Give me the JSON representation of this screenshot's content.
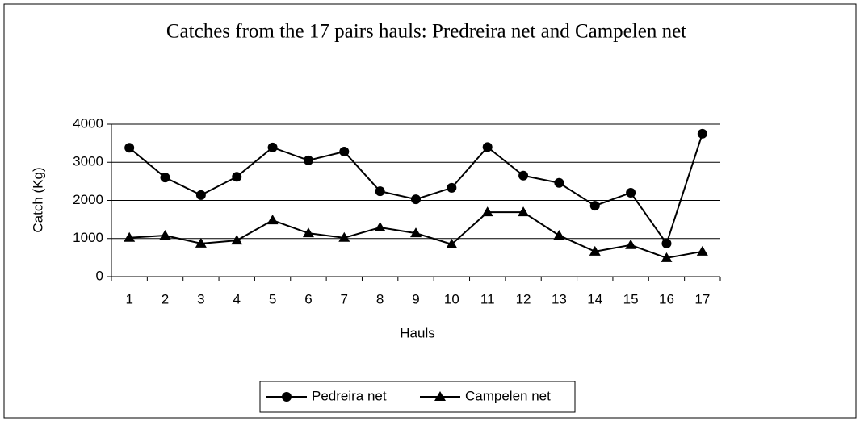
{
  "chart_data": {
    "type": "line",
    "title": "Catches from the 17 pairs hauls: Predreira net and Campelen net",
    "x_label": "Hauls",
    "y_label": "Catch (Kg)",
    "categories": [
      "1",
      "2",
      "3",
      "4",
      "5",
      "6",
      "7",
      "8",
      "9",
      "10",
      "11",
      "12",
      "13",
      "14",
      "15",
      "16",
      "17"
    ],
    "series": [
      {
        "name": "Pedreira net",
        "color": "#000000",
        "marker": "circle",
        "values": [
          3380,
          2600,
          2140,
          2620,
          3390,
          3050,
          3280,
          2240,
          2030,
          2330,
          3400,
          2650,
          2460,
          1860,
          2200,
          870,
          3750
        ]
      },
      {
        "name": "Campelen net",
        "color": "#000000",
        "marker": "triangle",
        "values": [
          1020,
          1080,
          870,
          950,
          1480,
          1140,
          1020,
          1290,
          1140,
          850,
          1690,
          1690,
          1080,
          660,
          830,
          490,
          660
        ]
      }
    ],
    "ylim": [
      0,
      4000
    ],
    "yticks": [
      0,
      1000,
      2000,
      3000,
      4000
    ],
    "grid": true,
    "legend": "bottom"
  }
}
